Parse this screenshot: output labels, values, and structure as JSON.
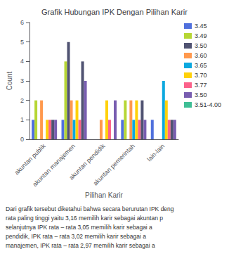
{
  "chart_data": {
    "type": "bar",
    "title": "Grafik Hubungan IPK Dengan Pilihan Karir",
    "x_label": "Pilihan Karir",
    "y_label": "Count",
    "categories": [
      "akuntan publik",
      "akuntan manajemen",
      "akuntan pendidik",
      "akuntan pemerintah",
      "lain-lain"
    ],
    "series": [
      {
        "name": "3.45",
        "values": [
          1,
          1,
          0,
          1,
          1
        ]
      },
      {
        "name": "3.49",
        "values": [
          2,
          4,
          0,
          2,
          0
        ]
      },
      {
        "name": "3.50",
        "values": [
          0,
          5,
          0,
          0,
          0
        ]
      },
      {
        "name": "3.60",
        "values": [
          2,
          2,
          1,
          2,
          0
        ]
      },
      {
        "name": "3.65",
        "values": [
          0,
          1,
          0,
          1,
          3
        ]
      },
      {
        "name": "3.70",
        "values": [
          1,
          2,
          2,
          2,
          2
        ]
      },
      {
        "name": "3.77",
        "values": [
          1,
          1,
          1,
          1,
          1
        ]
      },
      {
        "name": "3.50",
        "values": [
          1,
          4,
          0,
          2,
          1
        ]
      },
      {
        "name": "3.51-4.00",
        "values": [
          1,
          3,
          2,
          1,
          1
        ]
      }
    ],
    "ylim": [
      0,
      6
    ],
    "yticks": [
      0,
      1,
      2,
      3,
      4,
      5,
      6
    ],
    "grid": false,
    "legend": "right",
    "annotations": [
      "Dari grafik tersebut diketahui bahwa secara berurutan IPK deng",
      "rata paling tinggi yaitu 3,16 memilih karir sebagai akuntan p",
      "selanjutnya IPK rata – rata 3,05 memilih karir sebagai a",
      "pendidik, IPK rata – rata 3,02 memilih karir sebagai a",
      "manajemen, IPK rata – rata 2,97 memilih karir sebagai a"
    ]
  }
}
